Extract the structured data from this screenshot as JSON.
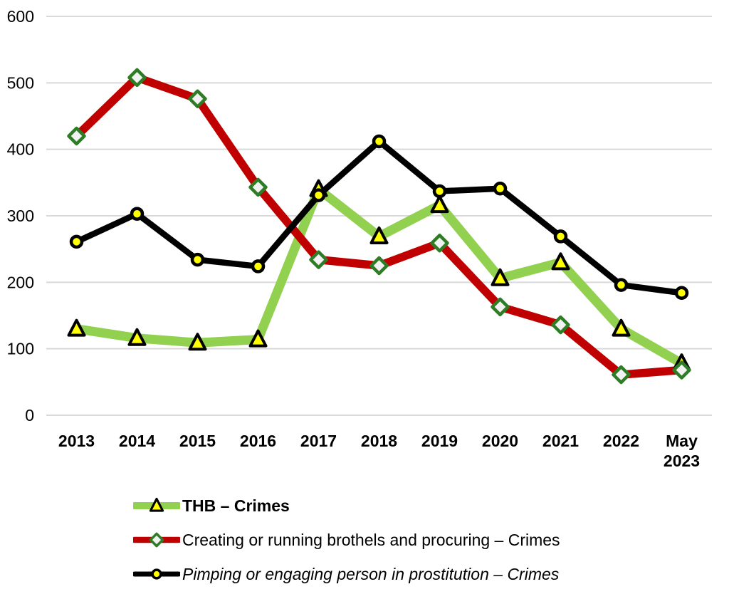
{
  "chart_data": {
    "type": "line",
    "title": "",
    "xlabel": "",
    "ylabel": "",
    "background": "#FFFFFF",
    "grid": true,
    "grid_color": "#D9D9D9",
    "legend_position": "bottom-left",
    "ylim": [
      0,
      600
    ],
    "y_axis": {
      "min": 0,
      "max": 600,
      "step": 100,
      "ticks": [
        "0",
        "100",
        "200",
        "300",
        "400",
        "500",
        "600"
      ]
    },
    "categories": [
      "2013",
      "2014",
      "2015",
      "2016",
      "2017",
      "2018",
      "2019",
      "2020",
      "2021",
      "2022",
      "May 2023"
    ],
    "series": [
      {
        "name": "THB – Crimes",
        "label_style": "bold",
        "color": "#92D050",
        "line_width": 13,
        "marker": "triangle",
        "marker_fill": "#FFFF00",
        "marker_stroke": "#000000",
        "values": [
          130,
          116,
          109,
          114,
          340,
          269,
          316,
          206,
          230,
          130,
          78
        ]
      },
      {
        "name": "Creating or running brothels and procuring – Crimes",
        "label_style": "normal",
        "color": "#C00000",
        "line_width": 11.5,
        "marker": "diamond",
        "marker_fill": "#F2F2F2",
        "marker_stroke": "#2E7D26",
        "values": [
          420,
          508,
          476,
          343,
          234,
          225,
          259,
          163,
          136,
          61,
          68
        ]
      },
      {
        "name": "Pimping or engaging person in prostitution – Crimes",
        "label_style": "italic",
        "color": "#000000",
        "line_width": 8.5,
        "marker": "circle",
        "marker_fill": "#FFFF00",
        "marker_stroke": "#000000",
        "values": [
          261,
          303,
          234,
          224,
          331,
          412,
          337,
          341,
          269,
          196,
          184
        ]
      }
    ]
  }
}
